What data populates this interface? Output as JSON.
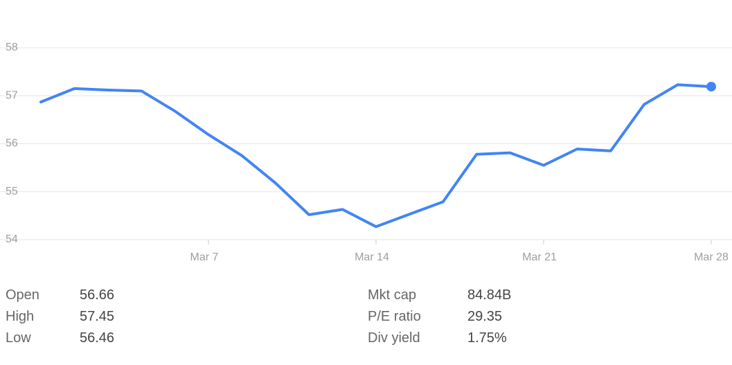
{
  "chart_data": {
    "type": "line",
    "categories": [
      null,
      null,
      null,
      null,
      null,
      "Mar 7",
      null,
      null,
      null,
      null,
      "Mar 14",
      null,
      null,
      null,
      null,
      "Mar 21",
      null,
      null,
      null,
      null,
      "Mar 28"
    ],
    "values": [
      56.87,
      57.15,
      57.12,
      57.1,
      56.68,
      56.19,
      55.75,
      55.18,
      54.52,
      54.63,
      54.27,
      54.53,
      54.79,
      55.78,
      55.81,
      55.55,
      55.89,
      55.85,
      56.82,
      57.23,
      57.19
    ],
    "color": "#4285f4",
    "ylim": [
      54,
      58
    ],
    "yticks": [
      54,
      55,
      56,
      57,
      58
    ],
    "grid": true
  },
  "stats": {
    "left": [
      {
        "label": "Open",
        "value": "56.66"
      },
      {
        "label": "High",
        "value": "57.45"
      },
      {
        "label": "Low",
        "value": "56.46"
      }
    ],
    "right": [
      {
        "label": "Mkt cap",
        "value": "84.84B"
      },
      {
        "label": "P/E ratio",
        "value": "29.35"
      },
      {
        "label": "Div yield",
        "value": "1.75%"
      }
    ]
  }
}
